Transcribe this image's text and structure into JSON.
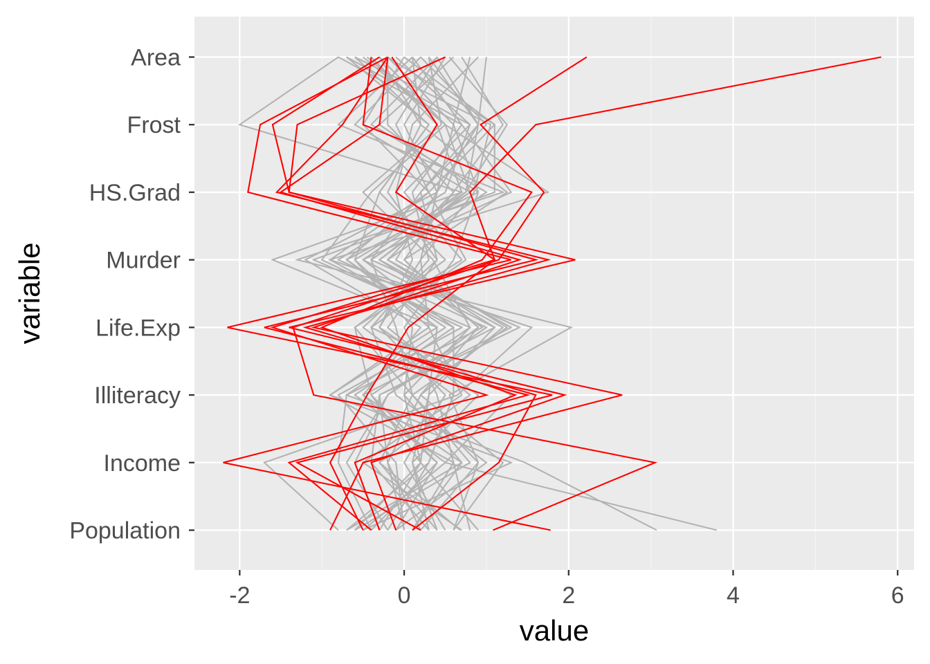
{
  "chart_data": {
    "type": "line",
    "xlabel": "value",
    "ylabel": "variable",
    "variables": [
      "Population",
      "Income",
      "Illiteracy",
      "Life.Exp",
      "Murder",
      "HS.Grad",
      "Frost",
      "Area"
    ],
    "xlim": [
      -2.55,
      6.2
    ],
    "x_ticks": [
      -2,
      0,
      2,
      4,
      6
    ],
    "x_tick_labels": [
      "-2",
      "0",
      "2",
      "4",
      "6"
    ],
    "grid": true,
    "colors": {
      "panel": "#ebebeb",
      "grid_major": "#ffffff",
      "grid_minor": "#f5f5f5",
      "background": "#ffffff",
      "grey_series": "#b3b3b3",
      "red_series": "#ff0000",
      "tick_label": "#4d4d4d",
      "title": "#000000"
    },
    "highlighted_color": "red",
    "series": [
      {
        "highlight": false,
        "values": [
          -0.3,
          0.2,
          0.0,
          0.8,
          0.35,
          -0.5,
          0.45,
          0.3
        ]
      },
      {
        "highlight": false,
        "values": [
          0.1,
          0.6,
          -0.9,
          0.3,
          -0.6,
          0.75,
          0.9,
          0.4
        ]
      },
      {
        "highlight": false,
        "values": [
          3.8,
          0.5,
          1.3,
          -0.4,
          0.75,
          0.3,
          1.1,
          -0.2
        ]
      },
      {
        "highlight": false,
        "values": [
          3.07,
          1.47,
          -0.7,
          0.95,
          -0.3,
          0.75,
          1.25,
          0.55
        ]
      },
      {
        "highlight": false,
        "values": [
          -0.8,
          -1.7,
          0.65,
          1.55,
          -0.9,
          1.75,
          0.5,
          -0.45
        ]
      },
      {
        "highlight": false,
        "values": [
          0.2,
          0.9,
          0.55,
          2.03,
          -1.3,
          1.2,
          -0.8,
          0.1
        ]
      },
      {
        "highlight": false,
        "values": [
          -0.5,
          1.3,
          -0.9,
          0.4,
          -1.6,
          0.7,
          -2.0,
          -0.8
        ]
      },
      {
        "highlight": false,
        "values": [
          0.68,
          -0.3,
          0.1,
          1.25,
          -0.1,
          0.4,
          0.9,
          1.0
        ]
      },
      {
        "highlight": false,
        "values": [
          -0.1,
          0.4,
          -0.4,
          -0.6,
          0.5,
          -0.3,
          0.3,
          -0.7
        ]
      },
      {
        "highlight": false,
        "values": [
          0.4,
          0.1,
          0.9,
          -0.3,
          0.2,
          0.85,
          1.05,
          -0.6
        ]
      },
      {
        "highlight": false,
        "values": [
          -0.7,
          0.7,
          -0.5,
          0.2,
          -1.2,
          0.4,
          0.6,
          -0.2
        ]
      },
      {
        "highlight": false,
        "values": [
          0.9,
          0.2,
          0.3,
          1.1,
          -0.5,
          1.3,
          0.7,
          0.1
        ]
      },
      {
        "highlight": false,
        "values": [
          -0.4,
          -0.8,
          -0.7,
          0.5,
          -0.7,
          0.3,
          -0.5,
          0.0
        ]
      },
      {
        "highlight": false,
        "values": [
          0.6,
          1.2,
          0.2,
          0.9,
          0.0,
          0.6,
          1.2,
          0.7
        ]
      },
      {
        "highlight": false,
        "values": [
          -0.2,
          0.3,
          0.6,
          -0.5,
          0.4,
          -0.2,
          0.2,
          -0.3
        ]
      },
      {
        "highlight": false,
        "values": [
          0.3,
          -0.4,
          -0.3,
          1.3,
          -0.2,
          1.0,
          -0.4,
          0.4
        ]
      },
      {
        "highlight": false,
        "values": [
          -0.6,
          0.8,
          0.1,
          -0.1,
          -0.4,
          0.2,
          1.0,
          0.2
        ]
      },
      {
        "highlight": false,
        "values": [
          0.0,
          -0.1,
          -0.8,
          0.7,
          -1.0,
          -0.4,
          0.5,
          -0.5
        ]
      },
      {
        "highlight": false,
        "values": [
          0.8,
          0.6,
          0.4,
          0.0,
          0.6,
          0.9,
          -0.3,
          0.6
        ]
      },
      {
        "highlight": false,
        "values": [
          -0.3,
          -0.6,
          -0.2,
          1.0,
          -0.8,
          0.5,
          0.8,
          -0.1
        ]
      },
      {
        "highlight": false,
        "values": [
          0.5,
          0.0,
          0.5,
          -0.3,
          0.1,
          -0.1,
          0.1,
          0.9
        ]
      },
      {
        "highlight": false,
        "values": [
          -0.5,
          0.5,
          -0.6,
          0.6,
          -0.5,
          0.7,
          0.4,
          -0.4
        ]
      },
      {
        "highlight": false,
        "values": [
          0.2,
          -0.2,
          0.2,
          1.2,
          -0.3,
          0.8,
          -0.6,
          0.2
        ]
      },
      {
        "highlight": false,
        "values": [
          -0.1,
          1.0,
          -0.1,
          -0.4,
          0.3,
          0.1,
          0.7,
          -0.8
        ]
      },
      {
        "highlight": false,
        "values": [
          0.7,
          -0.5,
          0.7,
          0.3,
          0.2,
          0.4,
          0.0,
          0.5
        ]
      },
      {
        "highlight": false,
        "values": [
          -0.6,
          0.2,
          -0.4,
          0.8,
          -1.1,
          1.1,
          1.1,
          0.0
        ]
      },
      {
        "highlight": false,
        "values": [
          0.1,
          0.7,
          0.0,
          0.1,
          -0.6,
          -0.3,
          0.3,
          -0.6
        ]
      },
      {
        "highlight": false,
        "values": [
          0.4,
          -0.3,
          0.8,
          -0.2,
          0.4,
          0.2,
          0.9,
          0.3
        ]
      },
      {
        "highlight": false,
        "values": [
          -0.4,
          0.4,
          -0.5,
          1.1,
          -0.2,
          0.6,
          -0.2,
          -0.2
        ]
      },
      {
        "highlight": false,
        "values": [
          0.3,
          0.1,
          0.3,
          0.4,
          -0.7,
          0.9,
          0.6,
          0.8
        ]
      },
      {
        "highlight": false,
        "values": [
          -0.2,
          -0.7,
          -0.2,
          0.9,
          0.0,
          1.25,
          0.2,
          0.1
        ]
      },
      {
        "highlight": false,
        "values": [
          0.6,
          0.9,
          0.1,
          -0.6,
          0.7,
          0.0,
          0.8,
          -0.7
        ]
      },
      {
        "highlight": false,
        "values": [
          -0.7,
          0.3,
          0.6,
          0.6,
          -0.9,
          0.3,
          -0.1,
          0.4
        ]
      },
      {
        "highlight": false,
        "values": [
          0.0,
          -0.2,
          -0.3,
          1.4,
          -0.4,
          0.8,
          0.5,
          -0.3
        ]
      },
      {
        "highlight": true,
        "values": [
          -0.4,
          -1.4,
          1.5,
          -1.7,
          1.6,
          -1.4,
          -1.6,
          -0.3
        ]
      },
      {
        "highlight": true,
        "values": [
          0.2,
          -1.3,
          1.8,
          -2.15,
          1.3,
          -1.9,
          -1.75,
          -0.2
        ]
      },
      {
        "highlight": true,
        "values": [
          -0.9,
          -0.5,
          2.65,
          -1.1,
          1.4,
          -1.5,
          -0.3,
          -0.2
        ]
      },
      {
        "highlight": true,
        "values": [
          -0.1,
          -0.4,
          1.95,
          -1.4,
          2.08,
          -1.4,
          -1.3,
          0.5
        ]
      },
      {
        "highlight": true,
        "values": [
          1.78,
          -2.2,
          1.0,
          -1.6,
          1.1,
          0.8,
          1.6,
          5.8
        ]
      },
      {
        "highlight": true,
        "values": [
          0.1,
          1.15,
          1.6,
          -1.2,
          1.75,
          -1.55,
          -0.75,
          -0.2
        ]
      },
      {
        "highlight": true,
        "values": [
          1.08,
          3.05,
          -1.1,
          -1.35,
          1.15,
          1.7,
          0.93,
          2.22
        ]
      },
      {
        "highlight": true,
        "values": [
          -0.5,
          -0.9,
          -0.45,
          0.05,
          1.1,
          -0.1,
          0.4,
          -0.15
        ]
      },
      {
        "highlight": true,
        "values": [
          -0.3,
          -0.6,
          1.35,
          -1.0,
          0.95,
          1.55,
          -0.5,
          -0.4
        ]
      }
    ]
  }
}
